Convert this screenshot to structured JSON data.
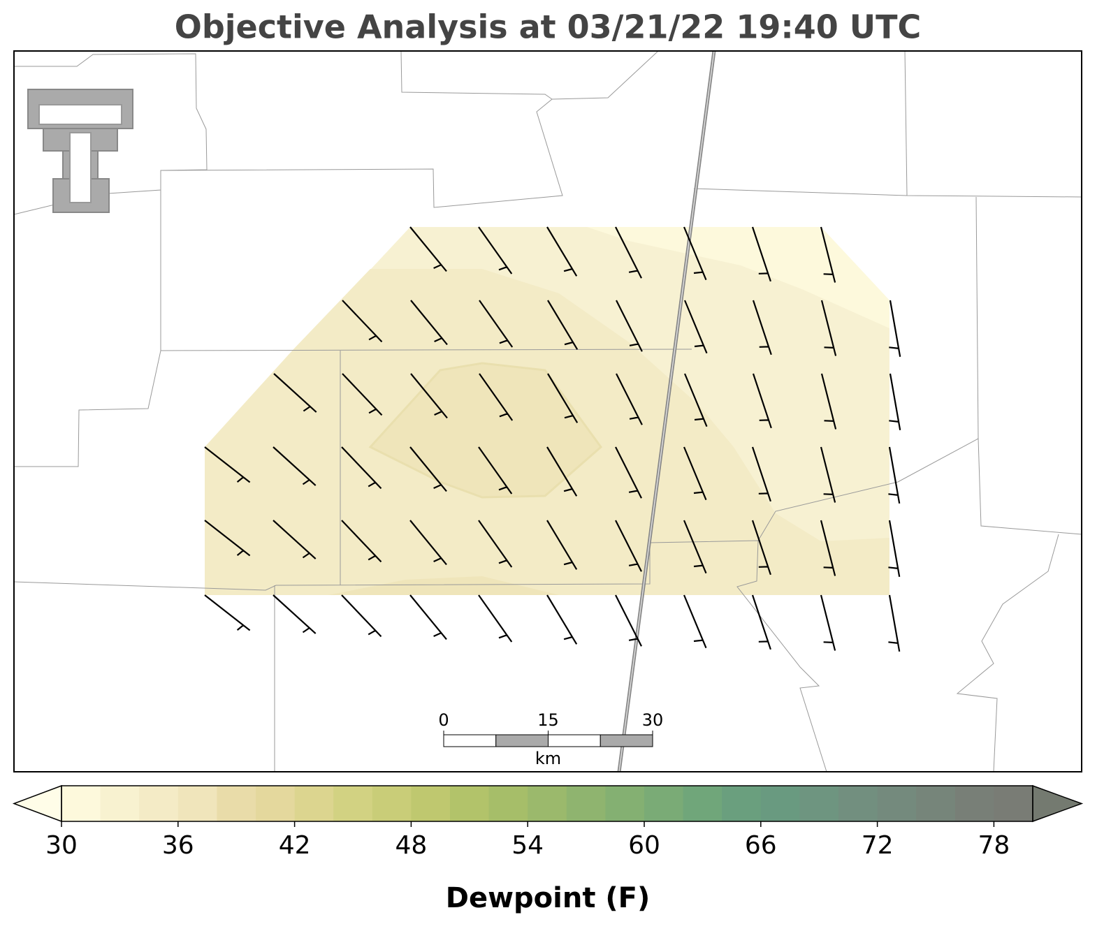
{
  "title": "Objective Analysis at 03/21/22 19:40 UTC",
  "colorbar": {
    "label": "Dewpoint (F)",
    "lim": [
      30,
      80
    ],
    "ticks": [
      30,
      36,
      42,
      48,
      54,
      60,
      66,
      72,
      78
    ],
    "colors": [
      "#fdf9dc",
      "#f8f2d0",
      "#f4ebc6",
      "#f0e5bb",
      "#e9dca9",
      "#e4d89d",
      "#dcd58f",
      "#d2d282",
      "#c9cd78",
      "#bfc86f",
      "#b2c36a",
      "#a6be69",
      "#9bb96c",
      "#8fb46f",
      "#84b072",
      "#7aab76",
      "#70a67a",
      "#6a9f7e",
      "#699a80",
      "#6e9580",
      "#728f7f",
      "#748a7d",
      "#76857a",
      "#787f77",
      "#797c75"
    ],
    "under_color": "#fffde8",
    "over_color": "#747a70"
  },
  "scale_bar": {
    "ticks": [
      0,
      15,
      30
    ],
    "unit": "km"
  }
}
